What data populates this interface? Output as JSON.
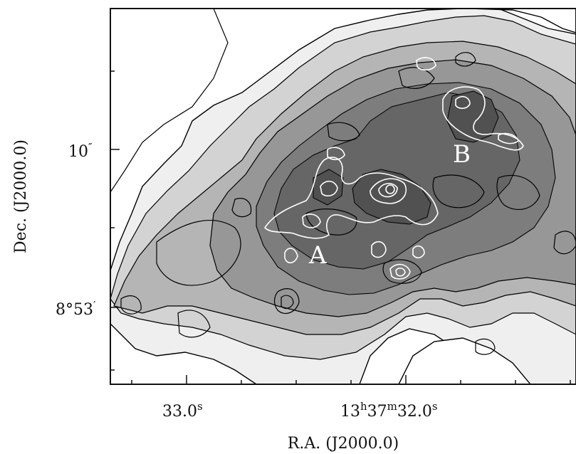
{
  "figure": {
    "y_axis_title": "Dec. (J2000.0)",
    "x_axis_title": "R.A. (J2000.0)",
    "y_ticks": [
      {
        "label_main": "10",
        "label_sup": "″"
      },
      {
        "label_main": "8°53",
        "label_sup": "′"
      }
    ],
    "x_ticks": [
      {
        "parts": [
          "33.0",
          "s"
        ]
      },
      {
        "parts": [
          "13",
          "h",
          "37",
          "m",
          "32.0",
          "s"
        ]
      }
    ],
    "region_labels": [
      "A",
      "B"
    ],
    "colors": {
      "frame": "#111111",
      "background": "#ffffff",
      "grey_levels": [
        "#f0f0f0",
        "#d2d2d2",
        "#b4b4b4",
        "#969696",
        "#7c7c7c",
        "#666666",
        "#505050"
      ],
      "contour_outer": "#000000",
      "contour_inner": "#ffffff"
    }
  }
}
